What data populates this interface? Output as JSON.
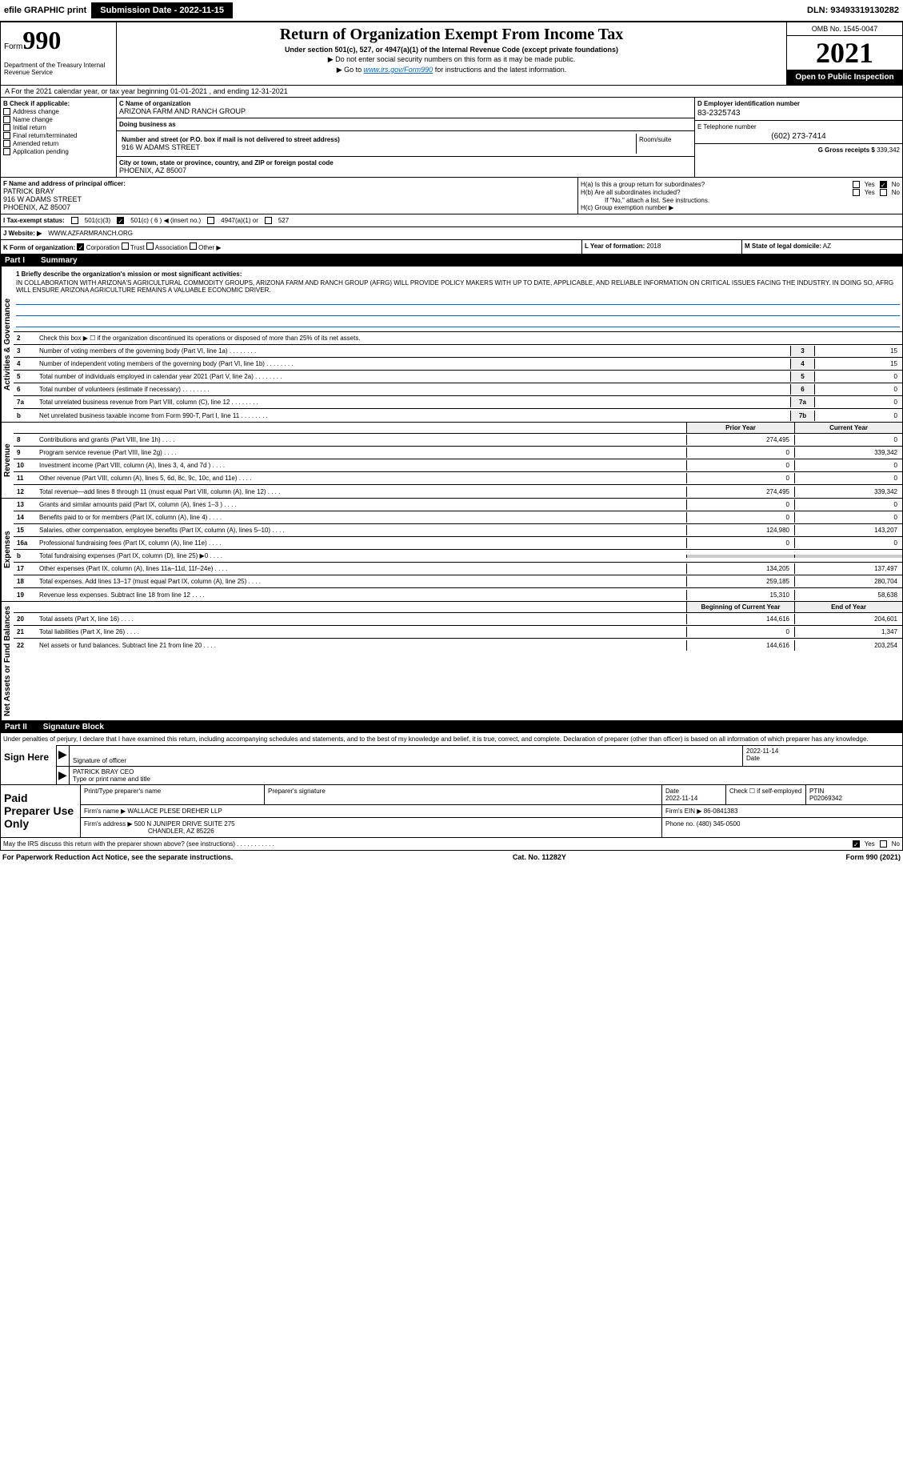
{
  "topbar": {
    "efile": "efile GRAPHIC print",
    "submission": "Submission Date - 2022-11-15",
    "dln": "DLN: 93493319130282"
  },
  "header": {
    "form_prefix": "Form",
    "form_num": "990",
    "dept": "Department of the Treasury Internal Revenue Service",
    "title": "Return of Organization Exempt From Income Tax",
    "subtitle": "Under section 501(c), 527, or 4947(a)(1) of the Internal Revenue Code (except private foundations)",
    "note1": "▶ Do not enter social security numbers on this form as it may be made public.",
    "note2_pre": "▶ Go to ",
    "note2_link": "www.irs.gov/Form990",
    "note2_post": " for instructions and the latest information.",
    "omb": "OMB No. 1545-0047",
    "year": "2021",
    "open": "Open to Public Inspection"
  },
  "cal_year": "A For the 2021 calendar year, or tax year beginning 01-01-2021    , and ending 12-31-2021",
  "section_b": {
    "label": "B Check if applicable:",
    "items": [
      "Address change",
      "Name change",
      "Initial return",
      "Final return/terminated",
      "Amended return",
      "Application pending"
    ]
  },
  "section_c": {
    "label": "C Name of organization",
    "name": "ARIZONA FARM AND RANCH GROUP",
    "dba_label": "Doing business as",
    "addr_label": "Number and street (or P.O. box if mail is not delivered to street address)",
    "addr": "916 W ADAMS STREET",
    "room_label": "Room/suite",
    "city_label": "City or town, state or province, country, and ZIP or foreign postal code",
    "city": "PHOENIX, AZ  85007"
  },
  "section_d": {
    "label": "D Employer identification number",
    "val": "83-2325743"
  },
  "section_e": {
    "label": "E Telephone number",
    "val": "(602) 273-7414"
  },
  "section_g": {
    "label": "G Gross receipts $",
    "val": "339,342"
  },
  "section_f": {
    "label": "F Name and address of principal officer:",
    "name": "PATRICK BRAY",
    "addr1": "916 W ADAMS STREET",
    "addr2": "PHOENIX, AZ  85007"
  },
  "section_h": {
    "ha": "H(a)  Is this a group return for subordinates?",
    "hb": "H(b)  Are all subordinates included?",
    "hb_note": "If \"No,\" attach a list. See instructions.",
    "hc": "H(c)  Group exemption number ▶",
    "yes": "Yes",
    "no": "No"
  },
  "section_i": {
    "label": "I Tax-exempt status:",
    "opts": [
      "501(c)(3)",
      "501(c) ( 6 ) ◀ (insert no.)",
      "4947(a)(1) or",
      "527"
    ]
  },
  "section_j": {
    "label": "J Website: ▶",
    "val": "WWW.AZFARMRANCH.ORG"
  },
  "section_k": {
    "label": "K Form of organization:",
    "opts": [
      "Corporation",
      "Trust",
      "Association",
      "Other ▶"
    ]
  },
  "section_l": {
    "label": "L Year of formation:",
    "val": "2018"
  },
  "section_m": {
    "label": "M State of legal domicile:",
    "val": "AZ"
  },
  "part1": {
    "num": "Part I",
    "title": "Summary"
  },
  "mission": {
    "label": "1 Briefly describe the organization's mission or most significant activities:",
    "text": "IN COLLABORATION WITH ARIZONA'S AGRICULTURAL COMMODITY GROUPS, ARIZONA FARM AND RANCH GROUP (AFRG) WILL PROVIDE POLICY MAKERS WITH UP TO DATE, APPLICABLE, AND RELIABLE INFORMATION ON CRITICAL ISSUES FACING THE INDUSTRY. IN DOING SO, AFRG WILL ENSURE ARIZONA AGRICULTURE REMAINS A VALUABLE ECONOMIC DRIVER."
  },
  "gov_lines": [
    {
      "num": "2",
      "text": "Check this box ▶ ☐ if the organization discontinued its operations or disposed of more than 25% of its net assets.",
      "box": "",
      "val": ""
    },
    {
      "num": "3",
      "text": "Number of voting members of the governing body (Part VI, line 1a)",
      "box": "3",
      "val": "15"
    },
    {
      "num": "4",
      "text": "Number of independent voting members of the governing body (Part VI, line 1b)",
      "box": "4",
      "val": "15"
    },
    {
      "num": "5",
      "text": "Total number of individuals employed in calendar year 2021 (Part V, line 2a)",
      "box": "5",
      "val": "0"
    },
    {
      "num": "6",
      "text": "Total number of volunteers (estimate if necessary)",
      "box": "6",
      "val": "0"
    },
    {
      "num": "7a",
      "text": "Total unrelated business revenue from Part VIII, column (C), line 12",
      "box": "7a",
      "val": "0"
    },
    {
      "num": "b",
      "text": "Net unrelated business taxable income from Form 990-T, Part I, line 11",
      "box": "7b",
      "val": "0"
    }
  ],
  "year_cols": {
    "prior": "Prior Year",
    "current": "Current Year"
  },
  "revenue_lines": [
    {
      "num": "8",
      "text": "Contributions and grants (Part VIII, line 1h)",
      "prior": "274,495",
      "curr": "0"
    },
    {
      "num": "9",
      "text": "Program service revenue (Part VIII, line 2g)",
      "prior": "0",
      "curr": "339,342"
    },
    {
      "num": "10",
      "text": "Investment income (Part VIII, column (A), lines 3, 4, and 7d )",
      "prior": "0",
      "curr": "0"
    },
    {
      "num": "11",
      "text": "Other revenue (Part VIII, column (A), lines 5, 6d, 8c, 9c, 10c, and 11e)",
      "prior": "0",
      "curr": "0"
    },
    {
      "num": "12",
      "text": "Total revenue—add lines 8 through 11 (must equal Part VIII, column (A), line 12)",
      "prior": "274,495",
      "curr": "339,342"
    }
  ],
  "expense_lines": [
    {
      "num": "13",
      "text": "Grants and similar amounts paid (Part IX, column (A), lines 1–3 )",
      "prior": "0",
      "curr": "0"
    },
    {
      "num": "14",
      "text": "Benefits paid to or for members (Part IX, column (A), line 4)",
      "prior": "0",
      "curr": "0"
    },
    {
      "num": "15",
      "text": "Salaries, other compensation, employee benefits (Part IX, column (A), lines 5–10)",
      "prior": "124,980",
      "curr": "143,207"
    },
    {
      "num": "16a",
      "text": "Professional fundraising fees (Part IX, column (A), line 11e)",
      "prior": "0",
      "curr": "0"
    },
    {
      "num": "b",
      "text": "Total fundraising expenses (Part IX, column (D), line 25) ▶0",
      "prior": "",
      "curr": "",
      "shaded": true
    },
    {
      "num": "17",
      "text": "Other expenses (Part IX, column (A), lines 11a–11d, 11f–24e)",
      "prior": "134,205",
      "curr": "137,497"
    },
    {
      "num": "18",
      "text": "Total expenses. Add lines 13–17 (must equal Part IX, column (A), line 25)",
      "prior": "259,185",
      "curr": "280,704"
    },
    {
      "num": "19",
      "text": "Revenue less expenses. Subtract line 18 from line 12",
      "prior": "15,310",
      "curr": "58,638"
    }
  ],
  "net_cols": {
    "begin": "Beginning of Current Year",
    "end": "End of Year"
  },
  "net_lines": [
    {
      "num": "20",
      "text": "Total assets (Part X, line 16)",
      "prior": "144,616",
      "curr": "204,601"
    },
    {
      "num": "21",
      "text": "Total liabilities (Part X, line 26)",
      "prior": "0",
      "curr": "1,347"
    },
    {
      "num": "22",
      "text": "Net assets or fund balances. Subtract line 21 from line 20",
      "prior": "144,616",
      "curr": "203,254"
    }
  ],
  "part2": {
    "num": "Part II",
    "title": "Signature Block"
  },
  "sig": {
    "penalty": "Under penalties of perjury, I declare that I have examined this return, including accompanying schedules and statements, and to the best of my knowledge and belief, it is true, correct, and complete. Declaration of preparer (other than officer) is based on all information of which preparer has any knowledge.",
    "sign_here": "Sign Here",
    "sig_officer": "Signature of officer",
    "date": "2022-11-14",
    "date_label": "Date",
    "name": "PATRICK BRAY CEO",
    "name_label": "Type or print name and title"
  },
  "paid": {
    "label": "Paid Preparer Use Only",
    "h1": "Print/Type preparer's name",
    "h2": "Preparer's signature",
    "h3": "Date",
    "h4": "Check ☐ if self-employed",
    "h5": "PTIN",
    "date": "2022-11-14",
    "ptin": "P02069342",
    "firm_label": "Firm's name    ▶",
    "firm": "WALLACE PLESE DREHER LLP",
    "ein_label": "Firm's EIN ▶",
    "ein": "86-0841383",
    "addr_label": "Firm's address ▶",
    "addr1": "500 N JUNIPER DRIVE SUITE 275",
    "addr2": "CHANDLER, AZ  85226",
    "phone_label": "Phone no.",
    "phone": "(480) 345-0500"
  },
  "discuss": {
    "text": "May the IRS discuss this return with the preparer shown above? (see instructions)",
    "yes": "Yes",
    "no": "No"
  },
  "footer": {
    "left": "For Paperwork Reduction Act Notice, see the separate instructions.",
    "mid": "Cat. No. 11282Y",
    "right": "Form 990 (2021)"
  },
  "side_labels": {
    "gov": "Activities & Governance",
    "rev": "Revenue",
    "exp": "Expenses",
    "net": "Net Assets or Fund Balances"
  }
}
